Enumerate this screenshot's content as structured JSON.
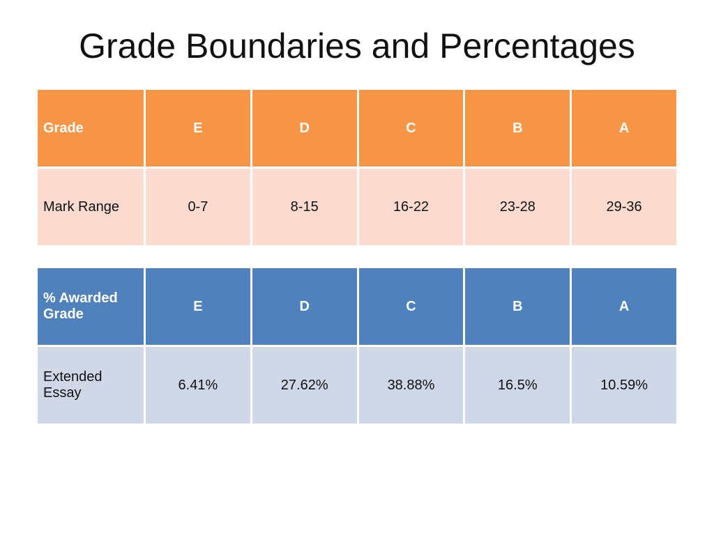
{
  "title": "Grade Boundaries and Percentages",
  "colors": {
    "orange_header": "#f79646",
    "orange_row": "#fbdbd0",
    "blue_header": "#4f81bd",
    "blue_row": "#d0d8e8"
  },
  "boundaries_table": {
    "header": [
      "Grade",
      "E",
      "D",
      "C",
      "B",
      "A"
    ],
    "row": [
      "Mark Range",
      "0-7",
      "8-15",
      "16-22",
      "23-28",
      "29-36"
    ]
  },
  "percentages_table": {
    "header": [
      "% Awarded Grade",
      "E",
      "D",
      "C",
      "B",
      "A"
    ],
    "row": [
      "Extended Essay",
      "6.41%",
      "27.62%",
      "38.88%",
      "16.5%",
      "10.59%"
    ]
  }
}
